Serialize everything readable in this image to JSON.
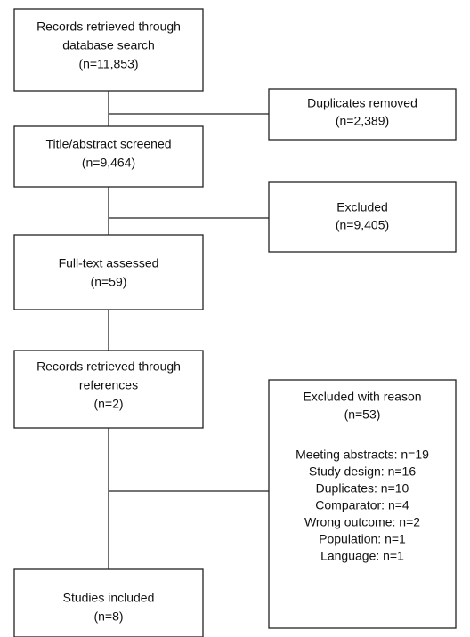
{
  "nodes": [
    {
      "lines": [
        "Records retrieved through",
        "database search",
        "(n=11,853)"
      ]
    },
    {
      "lines": [
        "Duplicates removed",
        "(n=2,389)"
      ]
    },
    {
      "lines": [
        "Title/abstract screened",
        "(n=9,464)"
      ]
    },
    {
      "lines": [
        "Excluded",
        "(n=9,405)"
      ]
    },
    {
      "lines": [
        "Full-text assessed",
        "(n=59)"
      ]
    },
    {
      "lines": [
        "Records retrieved through",
        "references",
        "(n=2)"
      ]
    },
    {
      "lines": [
        "Excluded with reason",
        "(n=53)"
      ],
      "items": [
        "Meeting abstracts: n=19",
        "Study design: n=16",
        "Duplicates: n=10",
        "Comparator: n=4",
        "Wrong outcome: n=2",
        "Population: n=1",
        "Language: n=1"
      ]
    },
    {
      "lines": [
        "Studies included",
        "(n=8)"
      ]
    }
  ]
}
